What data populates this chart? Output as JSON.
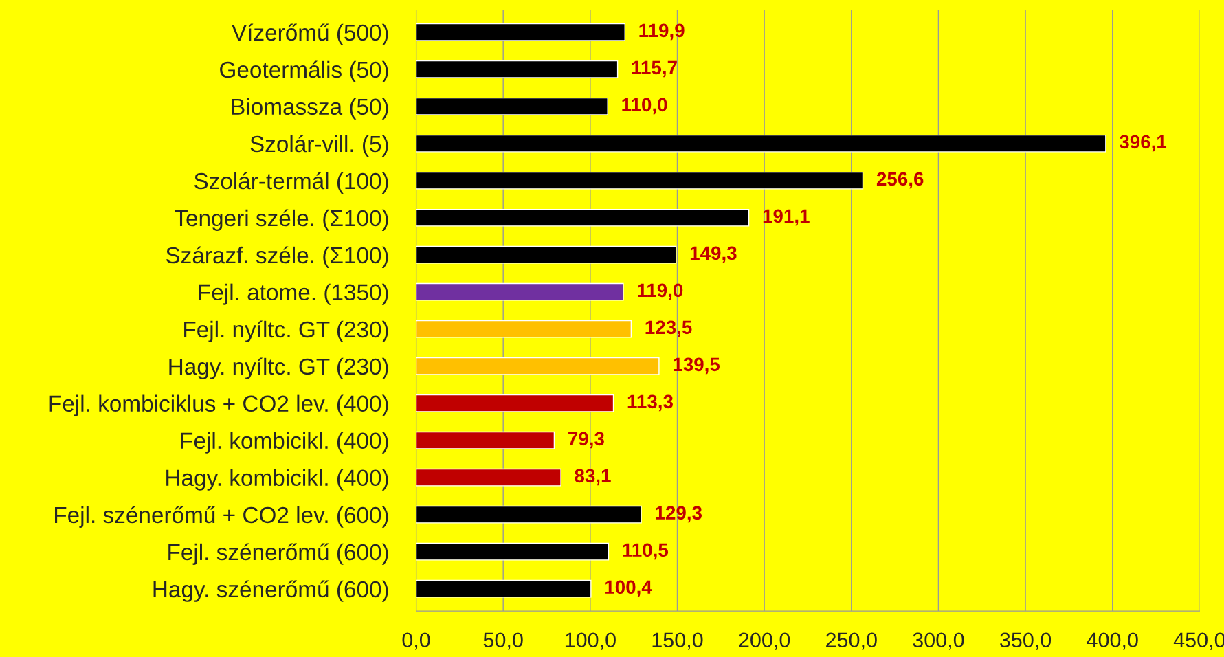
{
  "chart_data": {
    "type": "bar",
    "orientation": "horizontal",
    "grid": "x",
    "categories": [
      "Vízerőmű (500)",
      "Geotermális (50)",
      "Biomassza (50)",
      "Szolár-vill. (5)",
      "Szolár-termál (100)",
      "Tengeri széle. (Σ100)",
      "Szárazf. széle. (Σ100)",
      "Fejl. atome. (1350)",
      "Fejl. nyíltc. GT (230)",
      "Hagy. nyíltc. GT (230)",
      "Fejl. kombiciklus + CO2 lev. (400)",
      "Fejl. kombicikl. (400)",
      "Hagy. kombicikl. (400)",
      "Fejl. szénerőmű + CO2 lev. (600)",
      "Fejl. szénerőmű (600)",
      "Hagy. szénerőmű (600)"
    ],
    "values": [
      119.9,
      115.7,
      110.0,
      396.1,
      256.6,
      191.1,
      149.3,
      119.0,
      123.5,
      139.5,
      113.3,
      79.3,
      83.1,
      129.3,
      110.5,
      100.4
    ],
    "value_labels": [
      "119,9",
      "115,7",
      "110,0",
      "396,1",
      "256,6",
      "191,1",
      "149,3",
      "119,0",
      "123,5",
      "139,5",
      "113,3",
      "79,3",
      "83,1",
      "129,3",
      "110,5",
      "100,4"
    ],
    "colors": [
      "#000000",
      "#000000",
      "#000000",
      "#000000",
      "#000000",
      "#000000",
      "#000000",
      "#7030a0",
      "#ffc000",
      "#ffc000",
      "#c00000",
      "#c00000",
      "#c00000",
      "#000000",
      "#000000",
      "#000000"
    ],
    "xlim": [
      0,
      450
    ],
    "xticks": [
      {
        "value": 0,
        "label": "0,0"
      },
      {
        "value": 50,
        "label": "50,0"
      },
      {
        "value": 100,
        "label": "100,0"
      },
      {
        "value": 150,
        "label": "150,0"
      },
      {
        "value": 200,
        "label": "200,0"
      },
      {
        "value": 250,
        "label": "250,0"
      },
      {
        "value": 300,
        "label": "300,0"
      },
      {
        "value": 350,
        "label": "350,0"
      },
      {
        "value": 400,
        "label": "400,0"
      },
      {
        "value": 450,
        "label": "450,0"
      }
    ]
  }
}
